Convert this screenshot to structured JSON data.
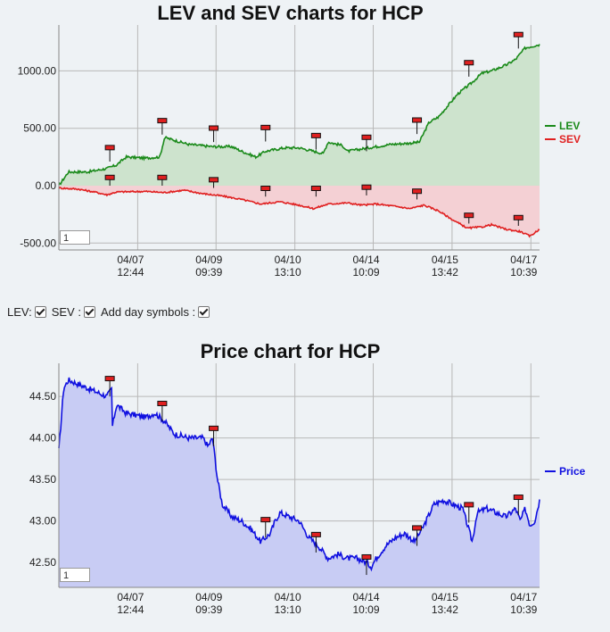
{
  "chart_data": [
    {
      "type": "area",
      "title": "LEV and SEV charts for HCP",
      "ylim": [
        -560,
        1400
      ],
      "yticks": [
        1000,
        500,
        0,
        -500
      ],
      "ytick_labels": [
        "1000.00",
        "500.00",
        "0.00",
        "-500.00"
      ],
      "xticks": [
        {
          "pos": 0.164,
          "date": "04/07",
          "time": "12:44"
        },
        {
          "pos": 0.327,
          "date": "04/09",
          "time": "09:39"
        },
        {
          "pos": 0.491,
          "date": "04/10",
          "time": "13:10"
        },
        {
          "pos": 0.654,
          "date": "04/14",
          "time": "10:09"
        },
        {
          "pos": 0.818,
          "date": "04/15",
          "time": "13:42"
        },
        {
          "pos": 0.982,
          "date": "04/17",
          "time": "10:39"
        }
      ],
      "series": [
        {
          "name": "LEV",
          "color": "#1a8a1a",
          "fill": "#cde3cd",
          "points": [
            [
              0,
              0
            ],
            [
              0.02,
              120
            ],
            [
              0.06,
              120
            ],
            [
              0.1,
              150
            ],
            [
              0.12,
              180
            ],
            [
              0.14,
              250
            ],
            [
              0.18,
              240
            ],
            [
              0.21,
              250
            ],
            [
              0.22,
              420
            ],
            [
              0.27,
              360
            ],
            [
              0.32,
              340
            ],
            [
              0.36,
              340
            ],
            [
              0.38,
              300
            ],
            [
              0.41,
              250
            ],
            [
              0.43,
              300
            ],
            [
              0.47,
              330
            ],
            [
              0.5,
              330
            ],
            [
              0.53,
              300
            ],
            [
              0.55,
              280
            ],
            [
              0.56,
              380
            ],
            [
              0.59,
              350
            ],
            [
              0.6,
              300
            ],
            [
              0.63,
              320
            ],
            [
              0.66,
              340
            ],
            [
              0.69,
              360
            ],
            [
              0.73,
              370
            ],
            [
              0.75,
              380
            ],
            [
              0.77,
              550
            ],
            [
              0.79,
              600
            ],
            [
              0.81,
              700
            ],
            [
              0.83,
              800
            ],
            [
              0.86,
              900
            ],
            [
              0.88,
              980
            ],
            [
              0.9,
              1000
            ],
            [
              0.93,
              1050
            ],
            [
              0.95,
              1100
            ],
            [
              0.97,
              1200
            ],
            [
              1.0,
              1230
            ]
          ]
        },
        {
          "name": "SEV",
          "color": "#e02020",
          "fill": "#f4d0d4",
          "points": [
            [
              0,
              -20
            ],
            [
              0.04,
              -30
            ],
            [
              0.08,
              -60
            ],
            [
              0.1,
              -80
            ],
            [
              0.12,
              -55
            ],
            [
              0.18,
              -50
            ],
            [
              0.22,
              -60
            ],
            [
              0.26,
              -40
            ],
            [
              0.3,
              -70
            ],
            [
              0.34,
              -90
            ],
            [
              0.38,
              -120
            ],
            [
              0.42,
              -160
            ],
            [
              0.46,
              -140
            ],
            [
              0.5,
              -170
            ],
            [
              0.53,
              -200
            ],
            [
              0.56,
              -160
            ],
            [
              0.6,
              -150
            ],
            [
              0.63,
              -170
            ],
            [
              0.66,
              -160
            ],
            [
              0.7,
              -180
            ],
            [
              0.73,
              -200
            ],
            [
              0.76,
              -170
            ],
            [
              0.79,
              -220
            ],
            [
              0.82,
              -300
            ],
            [
              0.85,
              -370
            ],
            [
              0.88,
              -360
            ],
            [
              0.9,
              -340
            ],
            [
              0.93,
              -380
            ],
            [
              0.96,
              -400
            ],
            [
              0.98,
              -440
            ],
            [
              1.0,
              -380
            ]
          ]
        }
      ],
      "day_markers_lev": [
        [
          0.106,
          320
        ],
        [
          0.215,
          555
        ],
        [
          0.322,
          490
        ],
        [
          0.43,
          495
        ],
        [
          0.535,
          425
        ],
        [
          0.64,
          410
        ],
        [
          0.745,
          560
        ],
        [
          0.853,
          1060
        ],
        [
          0.956,
          1305
        ]
      ],
      "day_markers_sev": [
        [
          0.106,
          60
        ],
        [
          0.215,
          60
        ],
        [
          0.322,
          40
        ],
        [
          0.43,
          -35
        ],
        [
          0.535,
          -35
        ],
        [
          0.64,
          -25
        ],
        [
          0.745,
          -60
        ],
        [
          0.853,
          -270
        ],
        [
          0.956,
          -290
        ]
      ]
    },
    {
      "type": "area",
      "title": "Price chart for HCP",
      "ylim": [
        42.2,
        44.9
      ],
      "yticks": [
        44.5,
        44.0,
        43.5,
        43.0,
        42.5
      ],
      "ytick_labels": [
        "44.50",
        "44.00",
        "43.50",
        "43.00",
        "42.50"
      ],
      "xticks": [
        {
          "pos": 0.164,
          "date": "04/07",
          "time": "12:44"
        },
        {
          "pos": 0.327,
          "date": "04/09",
          "time": "09:39"
        },
        {
          "pos": 0.491,
          "date": "04/10",
          "time": "13:10"
        },
        {
          "pos": 0.654,
          "date": "04/14",
          "time": "10:09"
        },
        {
          "pos": 0.818,
          "date": "04/15",
          "time": "13:42"
        },
        {
          "pos": 0.982,
          "date": "04/17",
          "time": "10:39"
        }
      ],
      "series": [
        {
          "name": "Price",
          "color": "#1010e0",
          "fill": "#c8ccf4",
          "points": [
            [
              0,
              43.85
            ],
            [
              0.01,
              44.6
            ],
            [
              0.02,
              44.7
            ],
            [
              0.04,
              44.65
            ],
            [
              0.06,
              44.6
            ],
            [
              0.08,
              44.55
            ],
            [
              0.1,
              44.5
            ],
            [
              0.11,
              44.6
            ],
            [
              0.11,
              44.1
            ],
            [
              0.12,
              44.4
            ],
            [
              0.14,
              44.3
            ],
            [
              0.18,
              44.25
            ],
            [
              0.2,
              44.3
            ],
            [
              0.22,
              44.2
            ],
            [
              0.24,
              44.05
            ],
            [
              0.27,
              44.0
            ],
            [
              0.3,
              44.0
            ],
            [
              0.31,
              43.9
            ],
            [
              0.32,
              44.0
            ],
            [
              0.33,
              43.5
            ],
            [
              0.34,
              43.2
            ],
            [
              0.36,
              43.05
            ],
            [
              0.38,
              43.0
            ],
            [
              0.4,
              42.9
            ],
            [
              0.42,
              42.75
            ],
            [
              0.44,
              42.85
            ],
            [
              0.45,
              43.0
            ],
            [
              0.46,
              43.1
            ],
            [
              0.48,
              43.05
            ],
            [
              0.5,
              43.0
            ],
            [
              0.52,
              42.8
            ],
            [
              0.54,
              42.7
            ],
            [
              0.56,
              42.55
            ],
            [
              0.58,
              42.6
            ],
            [
              0.6,
              42.55
            ],
            [
              0.62,
              42.55
            ],
            [
              0.64,
              42.5
            ],
            [
              0.65,
              42.45
            ],
            [
              0.66,
              42.55
            ],
            [
              0.68,
              42.7
            ],
            [
              0.7,
              42.8
            ],
            [
              0.72,
              42.85
            ],
            [
              0.74,
              42.75
            ],
            [
              0.75,
              42.85
            ],
            [
              0.76,
              42.95
            ],
            [
              0.78,
              43.2
            ],
            [
              0.8,
              43.25
            ],
            [
              0.82,
              43.2
            ],
            [
              0.84,
              43.15
            ],
            [
              0.85,
              42.95
            ],
            [
              0.86,
              42.75
            ],
            [
              0.87,
              43.1
            ],
            [
              0.89,
              43.15
            ],
            [
              0.91,
              43.1
            ],
            [
              0.93,
              43.05
            ],
            [
              0.95,
              43.15
            ],
            [
              0.96,
              43.0
            ],
            [
              0.97,
              43.15
            ],
            [
              0.98,
              42.95
            ],
            [
              0.99,
              43.0
            ],
            [
              1.0,
              43.25
            ]
          ]
        }
      ],
      "day_markers": [
        [
          0.106,
          44.7
        ],
        [
          0.215,
          44.4
        ],
        [
          0.322,
          44.1
        ],
        [
          0.43,
          43.0
        ],
        [
          0.535,
          42.82
        ],
        [
          0.64,
          42.55
        ],
        [
          0.745,
          42.9
        ],
        [
          0.853,
          43.18
        ],
        [
          0.956,
          43.27
        ]
      ]
    }
  ],
  "controls": {
    "lev_label": "LEV:",
    "sev_label": "SEV :",
    "day_symbols_label": "Add day symbols :"
  },
  "inputs": {
    "lev_chart_value": "1",
    "price_chart_value": "1"
  }
}
